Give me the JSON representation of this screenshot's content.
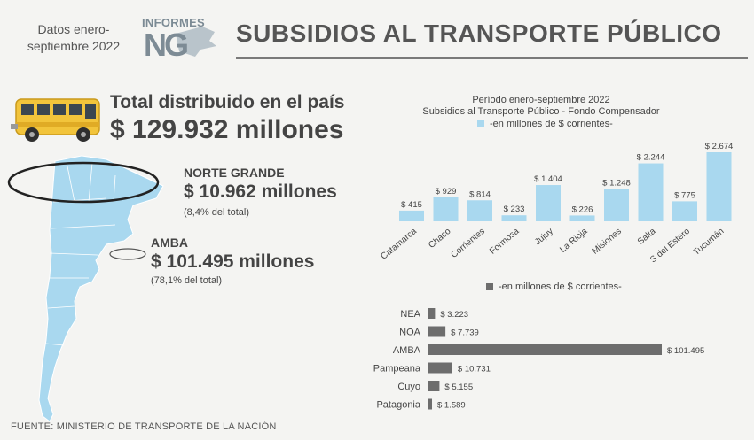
{
  "header": {
    "dates": "Datos enero-septiembre 2022",
    "logo_top": "INFORMES",
    "logo_main": "NG",
    "title": "SUBSIDIOS AL TRANSPORTE PÚBLICO"
  },
  "summary": {
    "total_label": "Total distribuido en el país",
    "total_value": "$ 129.932 millones",
    "norte_label": "NORTE GRANDE",
    "norte_value": "$ 10.962 millones",
    "norte_pct": "(8,4% del total)",
    "amba_label": "AMBA",
    "amba_value": "$ 101.495 millones",
    "amba_pct": "(78,1% del total)"
  },
  "source": "FUENTE: MINISTERIO DE TRANSPORTE DE LA NACIÓN",
  "colors": {
    "bar_blue": "#a9d8ef",
    "bar_gray": "#6d6d6d",
    "bus_yellow": "#f2c43b",
    "map_blue": "#a9d8ef"
  },
  "chart_data": [
    {
      "type": "bar",
      "title": "Período enero-septiembre 2022",
      "subtitle": "Subsidios al Transporte Público - Fondo Compensador",
      "legend": "-en millones de $ corrientes-",
      "categories": [
        "Catamarca",
        "Chaco",
        "Corrientes",
        "Formosa",
        "Jujuy",
        "La Rioja",
        "Misiones",
        "Salta",
        "S del Estero",
        "Tucumán"
      ],
      "values": [
        415,
        929,
        814,
        233,
        1404,
        226,
        1248,
        2244,
        775,
        2674
      ],
      "labels": [
        "$ 415",
        "$ 929",
        "$ 814",
        "$ 233",
        "$ 1.404",
        "$ 226",
        "$ 1.248",
        "$ 2.244",
        "$ 775",
        "$ 2.674"
      ],
      "ylim": [
        0,
        2674
      ]
    },
    {
      "type": "bar",
      "orientation": "horizontal",
      "legend": "-en millones de $ corrientes-",
      "categories": [
        "NEA",
        "NOA",
        "AMBA",
        "Pampeana",
        "Cuyo",
        "Patagonia"
      ],
      "values": [
        3223,
        7739,
        101495,
        10731,
        5155,
        1589
      ],
      "labels": [
        "$ 3.223",
        "$ 7.739",
        "$ 101.495",
        "$ 10.731",
        "$ 5.155",
        "$ 1.589"
      ],
      "xlim": [
        0,
        101495
      ]
    }
  ]
}
